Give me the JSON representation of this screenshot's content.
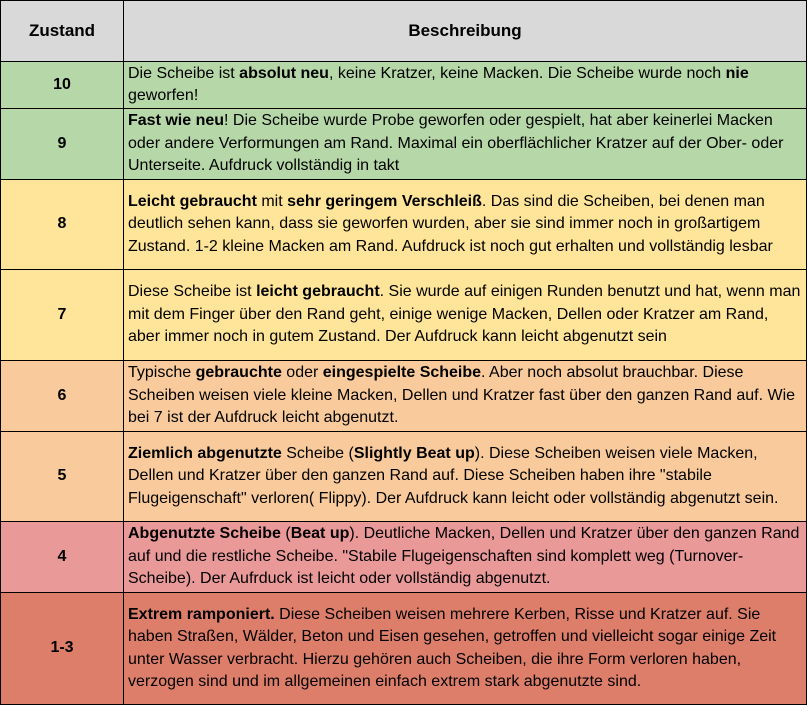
{
  "colors": {
    "header": "#d9d9d9",
    "green": "#b6d7a8",
    "yellow": "#ffe599",
    "orange": "#f9cb9c",
    "pink": "#ea9999",
    "red": "#dd7e6b"
  },
  "table": {
    "headers": [
      "Zustand",
      "Beschreibung"
    ],
    "rows": [
      {
        "zustand": "10",
        "color": "green",
        "height": 47,
        "segments": [
          {
            "text": "Die Scheibe ist ",
            "bold": false
          },
          {
            "text": "absolut neu",
            "bold": true
          },
          {
            "text": ", keine Kratzer, keine Macken. Die Scheibe wurde noch ",
            "bold": false
          },
          {
            "text": "nie",
            "bold": true
          },
          {
            "text": " geworfen!",
            "bold": false
          }
        ]
      },
      {
        "zustand": "9",
        "color": "green",
        "height": 71,
        "segments": [
          {
            "text": "Fast wie neu",
            "bold": true
          },
          {
            "text": "! Die Scheibe wurde Probe geworfen oder gespielt, hat aber keinerlei Macken oder andere Verformungen am Rand. Maximal ein oberflächlicher Kratzer auf der Ober- oder Unterseite. Aufdruck vollständig in takt",
            "bold": false
          }
        ]
      },
      {
        "zustand": "8",
        "color": "yellow",
        "height": 90,
        "segments": [
          {
            "text": "Leicht gebraucht",
            "bold": true
          },
          {
            "text": " mit ",
            "bold": false
          },
          {
            "text": "sehr geringem Verschleiß",
            "bold": true
          },
          {
            "text": ". Das sind die Scheiben, bei denen man deutlich sehen kann, dass sie geworfen wurden, aber sie sind immer noch in großartigem Zustand. 1-2 kleine Macken am Rand. Aufdruck ist noch gut erhalten und vollständig lesbar",
            "bold": false
          }
        ]
      },
      {
        "zustand": "7",
        "color": "yellow",
        "height": 91,
        "segments": [
          {
            "text": "Diese Scheibe ist ",
            "bold": false
          },
          {
            "text": "leicht gebraucht",
            "bold": true
          },
          {
            "text": ". Sie wurde auf einigen Runden benutzt und hat, wenn man mit dem Finger über den Rand geht, einige wenige Macken, Dellen oder Kratzer am Rand, aber immer noch in gutem Zustand. Der Aufdruck kann leicht abgenutzt sein",
            "bold": false
          }
        ]
      },
      {
        "zustand": "6",
        "color": "orange",
        "height": 71,
        "segments": [
          {
            "text": "Typische ",
            "bold": false
          },
          {
            "text": "gebrauchte",
            "bold": true
          },
          {
            "text": " oder ",
            "bold": false
          },
          {
            "text": "eingespielte Scheibe",
            "bold": true
          },
          {
            "text": ". Aber noch absolut brauchbar. Diese Scheiben weisen viele kleine Macken, Dellen und Kratzer fast über den ganzen Rand auf. Wie bei 7 ist der Aufdruck leicht abgenutzt.",
            "bold": false
          }
        ]
      },
      {
        "zustand": "5",
        "color": "orange",
        "height": 90,
        "segments": [
          {
            "text": "Ziemlich abgenutzte",
            "bold": true
          },
          {
            "text": " Scheibe (",
            "bold": false
          },
          {
            "text": "Slightly Beat up",
            "bold": true
          },
          {
            "text": "). Diese Scheiben weisen viele Macken, Dellen und Kratzer über den ganzen Rand auf. Diese Scheiben haben ihre \"stabile Flugeigenschaft\" verloren( Flippy). Der Aufdruck kann leicht oder vollständig abgenutzt sein.",
            "bold": false
          }
        ]
      },
      {
        "zustand": "4",
        "color": "pink",
        "height": 71,
        "segments": [
          {
            "text": "Abgenutzte Scheibe",
            "bold": true
          },
          {
            "text": " (",
            "bold": false
          },
          {
            "text": "Beat up",
            "bold": true
          },
          {
            "text": "). Deutliche  Macken, Dellen und Kratzer über den ganzen Rand auf und die restliche Scheibe. \"Stabile Flugeigenschaften sind komplett weg (Turnover-Scheibe). Der Aufrduck ist leicht oder vollständig abgenutzt.",
            "bold": false
          }
        ]
      },
      {
        "zustand": "1-3",
        "color": "red",
        "height": 112,
        "segments": [
          {
            "text": "Extrem ramponiert.",
            "bold": true
          },
          {
            "text": " Diese Scheiben weisen mehrere Kerben, Risse und Kratzer auf. Sie haben Straßen, Wälder, Beton und Eisen gesehen, getroffen und vielleicht sogar einige Zeit unter Wasser verbracht. Hierzu gehören auch Scheiben, die ihre Form verloren haben, verzogen sind und im allgemeinen einfach extrem stark abgenutzte sind.",
            "bold": false
          }
        ]
      }
    ]
  }
}
